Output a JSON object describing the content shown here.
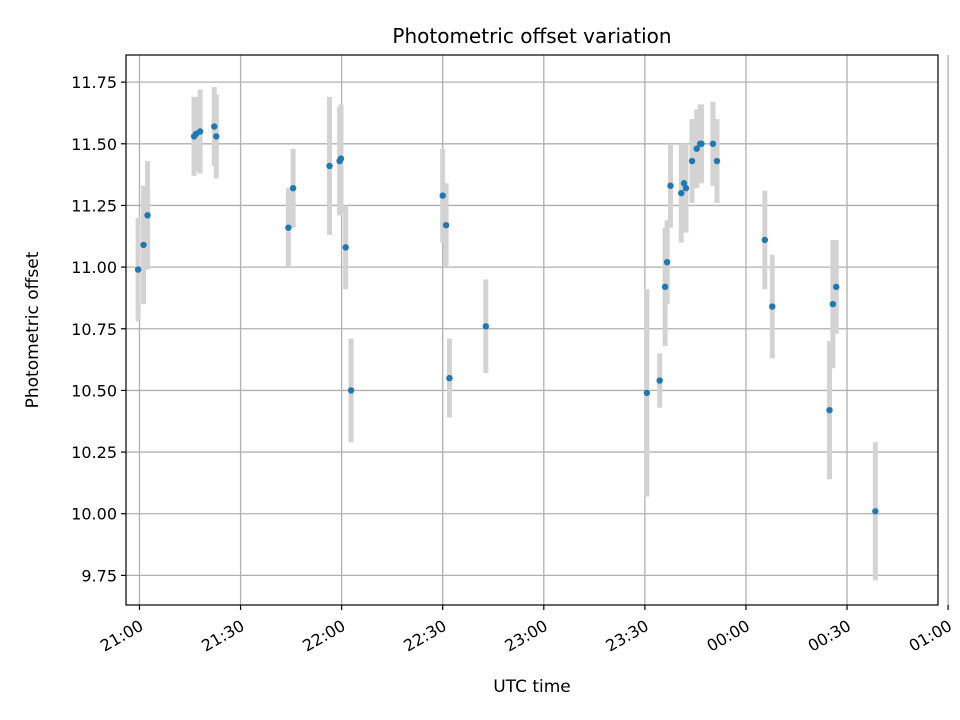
{
  "chart_data": {
    "type": "scatter",
    "title": "Photometric offset variation",
    "xlabel": "UTC time",
    "ylabel": "Photometric offset",
    "xlim": [
      "20:56",
      "00:57"
    ],
    "ylim": [
      9.63,
      11.86
    ],
    "grid": true,
    "x_ticks": [
      "21:00",
      "21:30",
      "22:00",
      "22:30",
      "23:00",
      "23:30",
      "00:00",
      "00:30",
      "01:00"
    ],
    "y_ticks": [
      "9.75",
      "10.00",
      "10.25",
      "10.50",
      "10.75",
      "11.00",
      "11.25",
      "11.50",
      "11.75"
    ],
    "x_tick_rotation_deg": 30,
    "colors": {
      "points": "#1f77b4",
      "error_bars": "#d3d3d3",
      "grid": "#b0b0b0"
    },
    "series": [
      {
        "points": [
          {
            "t": "20:59:36",
            "y": 10.99,
            "err": 0.21
          },
          {
            "t": "21:01:12",
            "y": 11.09,
            "err": 0.24
          },
          {
            "t": "21:02:24",
            "y": 11.21,
            "err": 0.22
          },
          {
            "t": "21:16:12",
            "y": 11.53,
            "err": 0.16
          },
          {
            "t": "21:16:48",
            "y": 11.54,
            "err": 0.15
          },
          {
            "t": "21:18:00",
            "y": 11.55,
            "err": 0.17
          },
          {
            "t": "21:22:12",
            "y": 11.57,
            "err": 0.16
          },
          {
            "t": "21:22:48",
            "y": 11.53,
            "err": 0.17
          },
          {
            "t": "21:44:12",
            "y": 11.16,
            "err": 0.16
          },
          {
            "t": "21:45:36",
            "y": 11.32,
            "err": 0.16
          },
          {
            "t": "21:56:24",
            "y": 11.41,
            "err": 0.28
          },
          {
            "t": "21:59:24",
            "y": 11.43,
            "err": 0.22
          },
          {
            "t": "21:59:48",
            "y": 11.44,
            "err": 0.22
          },
          {
            "t": "22:01:12",
            "y": 11.08,
            "err": 0.17
          },
          {
            "t": "22:02:48",
            "y": 10.5,
            "err": 0.21
          },
          {
            "t": "22:30:00",
            "y": 11.29,
            "err": 0.19
          },
          {
            "t": "22:31:00",
            "y": 11.17,
            "err": 0.17
          },
          {
            "t": "22:32:00",
            "y": 10.55,
            "err": 0.16
          },
          {
            "t": "22:42:48",
            "y": 10.76,
            "err": 0.19
          },
          {
            "t": "23:30:36",
            "y": 10.49,
            "err": 0.42
          },
          {
            "t": "23:34:24",
            "y": 10.54,
            "err": 0.11
          },
          {
            "t": "23:36:00",
            "y": 10.92,
            "err": 0.24
          },
          {
            "t": "23:36:36",
            "y": 11.02,
            "err": 0.17
          },
          {
            "t": "23:37:36",
            "y": 11.33,
            "err": 0.17
          },
          {
            "t": "23:40:48",
            "y": 11.3,
            "err": 0.2
          },
          {
            "t": "23:41:36",
            "y": 11.34,
            "err": 0.16
          },
          {
            "t": "23:42:12",
            "y": 11.32,
            "err": 0.18
          },
          {
            "t": "23:44:00",
            "y": 11.43,
            "err": 0.17
          },
          {
            "t": "23:45:24",
            "y": 11.48,
            "err": 0.16
          },
          {
            "t": "23:46:24",
            "y": 11.5,
            "err": 0.16
          },
          {
            "t": "23:46:48",
            "y": 11.5,
            "err": 0.16
          },
          {
            "t": "23:50:12",
            "y": 11.5,
            "err": 0.17
          },
          {
            "t": "23:51:24",
            "y": 11.43,
            "err": 0.17
          },
          {
            "t": "00:05:36",
            "y": 11.11,
            "err": 0.2
          },
          {
            "t": "00:07:48",
            "y": 10.84,
            "err": 0.21
          },
          {
            "t": "00:24:48",
            "y": 10.42,
            "err": 0.28
          },
          {
            "t": "00:25:48",
            "y": 10.85,
            "err": 0.26
          },
          {
            "t": "00:26:48",
            "y": 10.92,
            "err": 0.19
          },
          {
            "t": "00:38:24",
            "y": 10.01,
            "err": 0.28
          }
        ]
      }
    ]
  }
}
